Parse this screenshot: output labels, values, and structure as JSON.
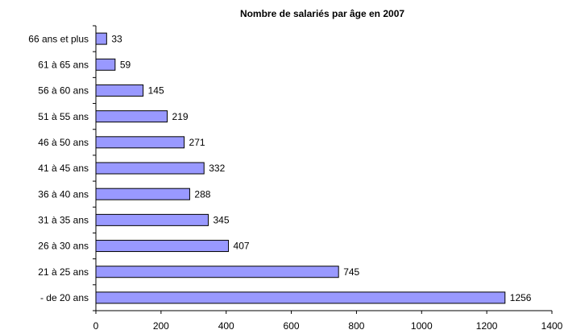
{
  "chart_data": {
    "type": "bar",
    "orientation": "horizontal",
    "title": "Nombre de salariés par âge en 2007",
    "categories": [
      "66 ans et plus",
      "61 à 65 ans",
      "56 à 60 ans",
      "51 à 55 ans",
      "46 à 50 ans",
      "41 à 45 ans",
      "36 à 40 ans",
      "31 à 35 ans",
      "26 à 30 ans",
      "21 à 25 ans",
      "- de 20 ans"
    ],
    "values": [
      33,
      59,
      145,
      219,
      271,
      332,
      288,
      345,
      407,
      745,
      1256
    ],
    "color": "#9999ff",
    "xlim": [
      0,
      1400
    ],
    "xticks": [
      0,
      200,
      400,
      600,
      800,
      1000,
      1200,
      1400
    ],
    "grid": false
  }
}
